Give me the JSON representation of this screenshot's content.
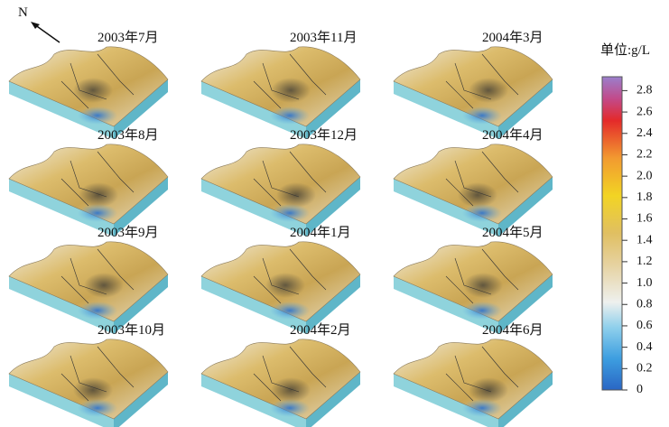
{
  "north": "N",
  "panels": [
    {
      "label": "2003年7月"
    },
    {
      "label": "2003年8月"
    },
    {
      "label": "2003年9月"
    },
    {
      "label": "2003年10月"
    },
    {
      "label": "2003年11月"
    },
    {
      "label": "2003年12月"
    },
    {
      "label": "2004年1月"
    },
    {
      "label": "2004年2月"
    },
    {
      "label": "2004年3月"
    },
    {
      "label": "2004年4月"
    },
    {
      "label": "2004年5月"
    },
    {
      "label": "2004年6月"
    }
  ],
  "colorbar": {
    "title": "单位:g/L",
    "range": [
      0,
      2.93
    ],
    "ticks": [
      0,
      0.2,
      0.4,
      0.6,
      0.8,
      {
        "value": 1,
        "label": "1.0"
      },
      1.2,
      1.4,
      1.6,
      1.8,
      {
        "value": 2,
        "label": "2.0"
      },
      2.2,
      2.4,
      2.6,
      2.8
    ]
  }
}
